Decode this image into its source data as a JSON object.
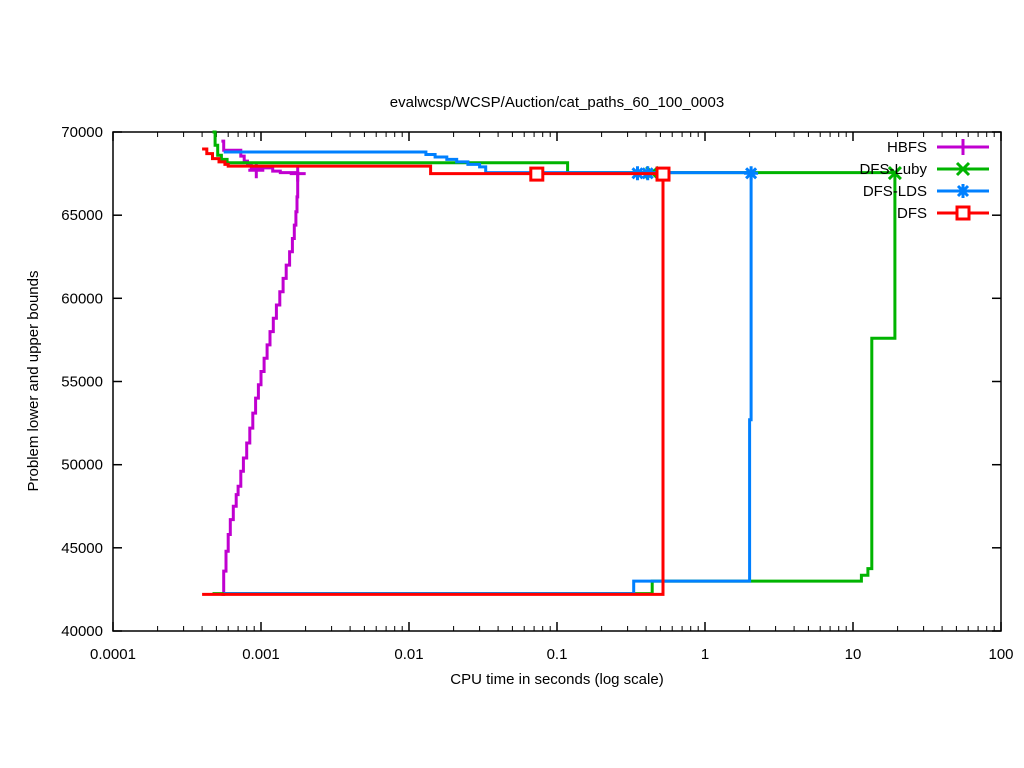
{
  "chart_data": {
    "type": "line",
    "title": "evalwcsp/WCSP/Auction/cat_paths_60_100_0003",
    "xlabel": "CPU time in seconds (log scale)",
    "ylabel": "Problem lower and upper bounds",
    "x_scale": "log",
    "xlim": [
      0.0001,
      100
    ],
    "ylim": [
      40000,
      70000
    ],
    "grid": false,
    "legend_position": "top-right",
    "axis_color": "#000000",
    "background_color": "#ffffff",
    "x_ticks": [
      {
        "v": 0.0001,
        "label": "0.0001"
      },
      {
        "v": 0.001,
        "label": "0.001"
      },
      {
        "v": 0.01,
        "label": "0.01"
      },
      {
        "v": 0.1,
        "label": "0.1"
      },
      {
        "v": 1,
        "label": "1"
      },
      {
        "v": 10,
        "label": "10"
      },
      {
        "v": 100,
        "label": "100"
      }
    ],
    "y_ticks": [
      {
        "v": 40000,
        "label": "40000"
      },
      {
        "v": 45000,
        "label": "45000"
      },
      {
        "v": 50000,
        "label": "50000"
      },
      {
        "v": 55000,
        "label": "55000"
      },
      {
        "v": 60000,
        "label": "60000"
      },
      {
        "v": 65000,
        "label": "65000"
      },
      {
        "v": 70000,
        "label": "70000"
      }
    ],
    "series": [
      {
        "name": "HBFS",
        "color": "#c000d0",
        "marker": "plus",
        "upper_bound": [
          [
            0.00054,
            69450
          ],
          [
            0.00056,
            68900
          ],
          [
            0.0007,
            68900
          ],
          [
            0.00073,
            68550
          ],
          [
            0.00077,
            68250
          ],
          [
            0.00081,
            68000
          ],
          [
            0.00086,
            67840
          ],
          [
            0.0011,
            67840
          ],
          [
            0.0012,
            67650
          ],
          [
            0.00135,
            67560
          ],
          [
            0.00177,
            67450
          ]
        ],
        "lower_bound": [
          [
            0.00054,
            42200
          ],
          [
            0.00056,
            43600
          ],
          [
            0.00058,
            44800
          ],
          [
            0.0006,
            45800
          ],
          [
            0.00062,
            46700
          ],
          [
            0.00065,
            47500
          ],
          [
            0.00068,
            48200
          ],
          [
            0.0007,
            48700
          ],
          [
            0.00073,
            49600
          ],
          [
            0.00076,
            50400
          ],
          [
            0.0008,
            51300
          ],
          [
            0.00084,
            52200
          ],
          [
            0.00088,
            53100
          ],
          [
            0.00092,
            54000
          ],
          [
            0.00096,
            54800
          ],
          [
            0.001,
            55600
          ],
          [
            0.00105,
            56400
          ],
          [
            0.0011,
            57200
          ],
          [
            0.00115,
            58000
          ],
          [
            0.00121,
            58800
          ],
          [
            0.00127,
            59600
          ],
          [
            0.00134,
            60400
          ],
          [
            0.00141,
            61200
          ],
          [
            0.00148,
            62000
          ],
          [
            0.00156,
            62800
          ],
          [
            0.00163,
            63600
          ],
          [
            0.00168,
            64400
          ],
          [
            0.00172,
            65200
          ],
          [
            0.00175,
            66100
          ],
          [
            0.00177,
            67450
          ]
        ],
        "marker_points": [
          [
            0.00093,
            67700
          ],
          [
            0.00177,
            67500
          ]
        ]
      },
      {
        "name": "DFS-Luby",
        "color": "#00b400",
        "marker": "cross",
        "upper_bound": [
          [
            0.00047,
            70000
          ],
          [
            0.00049,
            69200
          ],
          [
            0.00051,
            68600
          ],
          [
            0.00054,
            68350
          ],
          [
            0.00059,
            68150
          ],
          [
            0.113,
            68150
          ],
          [
            0.118,
            67560
          ],
          [
            19.2,
            67520
          ]
        ],
        "lower_bound": [
          [
            0.00047,
            42250
          ],
          [
            0.44,
            42250
          ],
          [
            0.44,
            43000
          ],
          [
            11.1,
            43000
          ],
          [
            11.4,
            43350
          ],
          [
            12.3,
            43350
          ],
          [
            12.6,
            43750
          ],
          [
            13.3,
            43750
          ],
          [
            13.4,
            57600
          ],
          [
            19.0,
            57600
          ],
          [
            19.2,
            67520
          ]
        ],
        "marker_points": [
          [
            0.44,
            67540
          ],
          [
            19.2,
            67530
          ]
        ]
      },
      {
        "name": "DFS-LDS",
        "color": "#0080ff",
        "marker": "asterisk",
        "upper_bound": [
          [
            0.00056,
            68800
          ],
          [
            0.011,
            68800
          ],
          [
            0.013,
            68650
          ],
          [
            0.015,
            68500
          ],
          [
            0.018,
            68350
          ],
          [
            0.021,
            68200
          ],
          [
            0.025,
            68050
          ],
          [
            0.03,
            67900
          ],
          [
            0.033,
            67560
          ],
          [
            2.05,
            67500
          ]
        ],
        "lower_bound": [
          [
            0.00056,
            42250
          ],
          [
            0.33,
            42250
          ],
          [
            0.33,
            43000
          ],
          [
            2.0,
            43000
          ],
          [
            2.0,
            52700
          ],
          [
            2.05,
            52700
          ],
          [
            2.05,
            67500
          ]
        ],
        "marker_points": [
          [
            0.35,
            67520
          ],
          [
            0.41,
            67520
          ],
          [
            2.05,
            67520
          ]
        ]
      },
      {
        "name": "DFS",
        "color": "#ff0000",
        "marker": "square",
        "upper_bound": [
          [
            0.0004,
            68980
          ],
          [
            0.00043,
            68700
          ],
          [
            0.00047,
            68400
          ],
          [
            0.00052,
            68200
          ],
          [
            0.00057,
            68050
          ],
          [
            0.0006,
            67950
          ],
          [
            0.013,
            67950
          ],
          [
            0.014,
            67500
          ],
          [
            0.52,
            67470
          ]
        ],
        "lower_bound": [
          [
            0.0004,
            42200
          ],
          [
            0.52,
            42200
          ],
          [
            0.52,
            67470
          ]
        ],
        "marker_points": [
          [
            0.073,
            67470
          ],
          [
            0.52,
            67470
          ]
        ]
      }
    ]
  }
}
